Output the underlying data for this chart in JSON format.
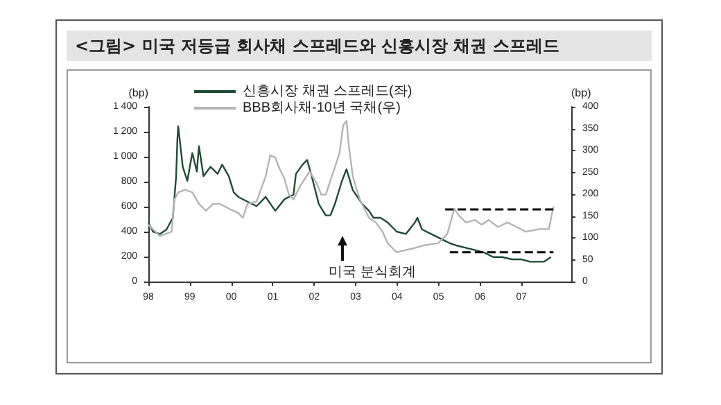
{
  "chart_data": {
    "type": "line",
    "title": "<그림> 미국 저등급 회사채 스프레드와 신흥시장 채권 스프레드",
    "ylabel": "(bp)",
    "y2label": "(bp)",
    "xlim": [
      1998,
      2008.2
    ],
    "xticks": [
      {
        "value": 1998,
        "label": "98"
      },
      {
        "value": 1999,
        "label": "99"
      },
      {
        "value": 2000,
        "label": "00"
      },
      {
        "value": 2001,
        "label": "01"
      },
      {
        "value": 2002,
        "label": "02"
      },
      {
        "value": 2003,
        "label": "03"
      },
      {
        "value": 2004,
        "label": "04"
      },
      {
        "value": 2005,
        "label": "05"
      },
      {
        "value": 2006,
        "label": "06"
      },
      {
        "value": 2007,
        "label": "07"
      }
    ],
    "ylim": [
      0,
      1400
    ],
    "yticks": [
      0,
      200,
      400,
      600,
      800,
      {
        "value": 1000,
        "label": "1 000"
      },
      {
        "value": 1200,
        "label": "1 200"
      },
      {
        "value": 1400,
        "label": "1 400"
      }
    ],
    "y2lim": [
      0,
      400
    ],
    "y2ticks": [
      0,
      50,
      100,
      150,
      200,
      250,
      300,
      350,
      400
    ],
    "grid": false,
    "legend": "top",
    "marker": "none",
    "annotations": [
      "미국 분식회계"
    ],
    "series": [
      {
        "name": "신흥시장 채권 스프레드(좌)",
        "color": "#1f4a33",
        "x": [
          1998.0,
          1998.11,
          1998.28,
          1998.44,
          1998.59,
          1998.67,
          1998.7,
          1998.72,
          1998.83,
          1998.94,
          1999.06,
          1999.17,
          1999.22,
          1999.33,
          1999.5,
          1999.67,
          1999.78,
          1999.94,
          2000.06,
          2000.17,
          2000.39,
          2000.61,
          2000.83,
          2001.06,
          2001.28,
          2001.5,
          2001.56,
          2001.72,
          2001.83,
          2001.94,
          2002.11,
          2002.28,
          2002.39,
          2002.5,
          2002.67,
          2002.78,
          2002.93,
          2003.16,
          2003.32,
          2003.43,
          2003.6,
          2003.77,
          2003.99,
          2004.21,
          2004.43,
          2004.49,
          2004.6,
          2004.82,
          2005.16,
          2005.27,
          2005.43,
          2005.66,
          2005.88,
          2006.1,
          2006.32,
          2006.54,
          2006.77,
          2006.99,
          2007.21,
          2007.54,
          2007.71
        ],
        "values": [
          474,
          400,
          381,
          418,
          511,
          844,
          1140,
          1244,
          919,
          807,
          1030,
          881,
          1085,
          844,
          919,
          863,
          937,
          844,
          715,
          678,
          640,
          604,
          678,
          567,
          659,
          696,
          863,
          937,
          974,
          844,
          622,
          530,
          530,
          622,
          807,
          900,
          733,
          622,
          567,
          511,
          511,
          474,
          400,
          381,
          474,
          511,
          418,
          381,
          326,
          307,
          289,
          270,
          252,
          233,
          196,
          196,
          178,
          178,
          159,
          159,
          196
        ]
      },
      {
        "name": "BBB회사채-10년 국채(우)",
        "color": "#b4b4b4",
        "axis": "y2",
        "x": [
          1998.0,
          1998.28,
          1998.56,
          1998.63,
          1998.72,
          1998.89,
          1999.06,
          1999.22,
          1999.39,
          1999.56,
          1999.72,
          1999.94,
          2000.17,
          2000.28,
          2000.39,
          2000.61,
          2000.83,
          2000.94,
          2001.06,
          2001.17,
          2001.28,
          2001.39,
          2001.5,
          2001.67,
          2001.89,
          2002.06,
          2002.17,
          2002.28,
          2002.39,
          2002.5,
          2002.61,
          2002.7,
          2002.78,
          2002.83,
          2002.93,
          2003.1,
          2003.32,
          2003.49,
          2003.65,
          2003.77,
          2003.99,
          2004.21,
          2004.43,
          2004.66,
          2004.99,
          2005.21,
          2005.38,
          2005.49,
          2005.66,
          2005.88,
          2006.04,
          2006.21,
          2006.43,
          2006.66,
          2006.88,
          2007.1,
          2007.43,
          2007.66,
          2007.77
        ],
        "values": [
          130,
          104,
          114,
          188,
          204,
          210,
          204,
          178,
          162,
          178,
          178,
          167,
          157,
          146,
          178,
          183,
          241,
          289,
          284,
          257,
          236,
          199,
          188,
          220,
          252,
          225,
          199,
          199,
          231,
          262,
          294,
          358,
          368,
          315,
          241,
          188,
          146,
          135,
          114,
          88,
          67,
          72,
          77,
          83,
          88,
          109,
          167,
          151,
          135,
          141,
          130,
          141,
          125,
          135,
          125,
          114,
          120,
          120,
          172
        ]
      },
      {
        "color": "#000000",
        "axis": "y2",
        "line_style": "dashed",
        "x": [
          2005.16,
          2007.77
        ],
        "values": [
          165,
          165
        ]
      },
      {
        "color": "#000000",
        "axis": "y2",
        "line_style": "dashed",
        "x": [
          2005.27,
          2007.77
        ],
        "values": [
          67,
          67
        ]
      }
    ]
  }
}
